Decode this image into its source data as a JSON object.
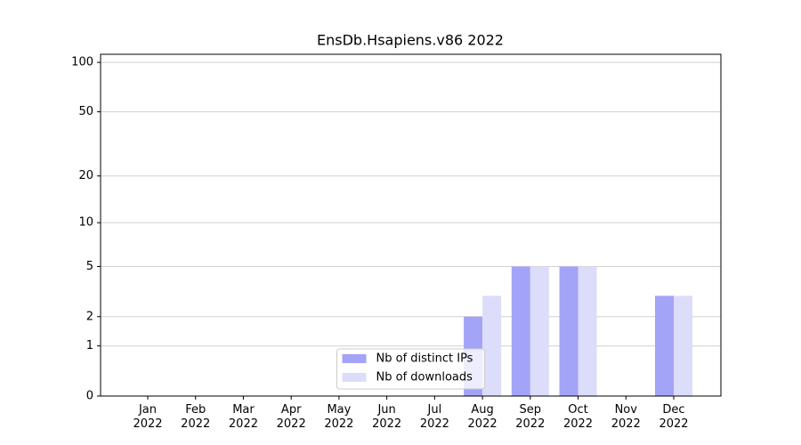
{
  "chart_data": {
    "type": "bar",
    "title": "EnsDb.Hsapiens.v86 2022",
    "categories": [
      "Jan\n2022",
      "Feb\n2022",
      "Mar\n2022",
      "Apr\n2022",
      "May\n2022",
      "Jun\n2022",
      "Jul\n2022",
      "Aug\n2022",
      "Sep\n2022",
      "Oct\n2022",
      "Nov\n2022",
      "Dec\n2022"
    ],
    "series": [
      {
        "name": "Nb of distinct IPs",
        "color": "#a3a3f8",
        "values": [
          null,
          null,
          null,
          null,
          null,
          null,
          null,
          2,
          5,
          5,
          null,
          3
        ]
      },
      {
        "name": "Nb of downloads",
        "color": "#dcdcfb",
        "values": [
          null,
          null,
          null,
          null,
          null,
          null,
          null,
          3,
          5,
          5,
          null,
          3
        ]
      }
    ],
    "yscale": "symlog",
    "ylim": [
      0,
      112
    ],
    "yticks": [
      0,
      1,
      2,
      5,
      10,
      20,
      50,
      100
    ],
    "grid": true,
    "legend": "lower center"
  }
}
